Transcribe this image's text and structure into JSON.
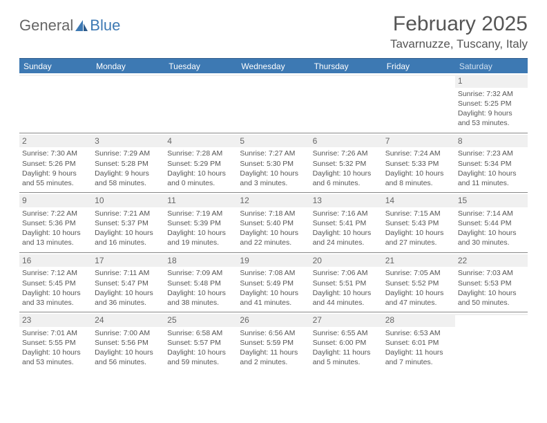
{
  "logo": {
    "text1": "General",
    "text2": "Blue"
  },
  "title": "February 2025",
  "location": "Tavarnuzze, Tuscany, Italy",
  "day_headers": [
    "Sunday",
    "Monday",
    "Tuesday",
    "Wednesday",
    "Thursday",
    "Friday",
    "Saturday"
  ],
  "colors": {
    "header_bg": "#3d79b3",
    "header_text": "#ffffff",
    "border": "#888888",
    "num_bg": "#f0f0f0",
    "body_text": "#555555"
  },
  "weeks": [
    [
      {
        "num": "",
        "sunrise": "",
        "sunset": "",
        "daylight": ""
      },
      {
        "num": "",
        "sunrise": "",
        "sunset": "",
        "daylight": ""
      },
      {
        "num": "",
        "sunrise": "",
        "sunset": "",
        "daylight": ""
      },
      {
        "num": "",
        "sunrise": "",
        "sunset": "",
        "daylight": ""
      },
      {
        "num": "",
        "sunrise": "",
        "sunset": "",
        "daylight": ""
      },
      {
        "num": "",
        "sunrise": "",
        "sunset": "",
        "daylight": ""
      },
      {
        "num": "1",
        "sunrise": "Sunrise: 7:32 AM",
        "sunset": "Sunset: 5:25 PM",
        "daylight": "Daylight: 9 hours and 53 minutes."
      }
    ],
    [
      {
        "num": "2",
        "sunrise": "Sunrise: 7:30 AM",
        "sunset": "Sunset: 5:26 PM",
        "daylight": "Daylight: 9 hours and 55 minutes."
      },
      {
        "num": "3",
        "sunrise": "Sunrise: 7:29 AM",
        "sunset": "Sunset: 5:28 PM",
        "daylight": "Daylight: 9 hours and 58 minutes."
      },
      {
        "num": "4",
        "sunrise": "Sunrise: 7:28 AM",
        "sunset": "Sunset: 5:29 PM",
        "daylight": "Daylight: 10 hours and 0 minutes."
      },
      {
        "num": "5",
        "sunrise": "Sunrise: 7:27 AM",
        "sunset": "Sunset: 5:30 PM",
        "daylight": "Daylight: 10 hours and 3 minutes."
      },
      {
        "num": "6",
        "sunrise": "Sunrise: 7:26 AM",
        "sunset": "Sunset: 5:32 PM",
        "daylight": "Daylight: 10 hours and 6 minutes."
      },
      {
        "num": "7",
        "sunrise": "Sunrise: 7:24 AM",
        "sunset": "Sunset: 5:33 PM",
        "daylight": "Daylight: 10 hours and 8 minutes."
      },
      {
        "num": "8",
        "sunrise": "Sunrise: 7:23 AM",
        "sunset": "Sunset: 5:34 PM",
        "daylight": "Daylight: 10 hours and 11 minutes."
      }
    ],
    [
      {
        "num": "9",
        "sunrise": "Sunrise: 7:22 AM",
        "sunset": "Sunset: 5:36 PM",
        "daylight": "Daylight: 10 hours and 13 minutes."
      },
      {
        "num": "10",
        "sunrise": "Sunrise: 7:21 AM",
        "sunset": "Sunset: 5:37 PM",
        "daylight": "Daylight: 10 hours and 16 minutes."
      },
      {
        "num": "11",
        "sunrise": "Sunrise: 7:19 AM",
        "sunset": "Sunset: 5:39 PM",
        "daylight": "Daylight: 10 hours and 19 minutes."
      },
      {
        "num": "12",
        "sunrise": "Sunrise: 7:18 AM",
        "sunset": "Sunset: 5:40 PM",
        "daylight": "Daylight: 10 hours and 22 minutes."
      },
      {
        "num": "13",
        "sunrise": "Sunrise: 7:16 AM",
        "sunset": "Sunset: 5:41 PM",
        "daylight": "Daylight: 10 hours and 24 minutes."
      },
      {
        "num": "14",
        "sunrise": "Sunrise: 7:15 AM",
        "sunset": "Sunset: 5:43 PM",
        "daylight": "Daylight: 10 hours and 27 minutes."
      },
      {
        "num": "15",
        "sunrise": "Sunrise: 7:14 AM",
        "sunset": "Sunset: 5:44 PM",
        "daylight": "Daylight: 10 hours and 30 minutes."
      }
    ],
    [
      {
        "num": "16",
        "sunrise": "Sunrise: 7:12 AM",
        "sunset": "Sunset: 5:45 PM",
        "daylight": "Daylight: 10 hours and 33 minutes."
      },
      {
        "num": "17",
        "sunrise": "Sunrise: 7:11 AM",
        "sunset": "Sunset: 5:47 PM",
        "daylight": "Daylight: 10 hours and 36 minutes."
      },
      {
        "num": "18",
        "sunrise": "Sunrise: 7:09 AM",
        "sunset": "Sunset: 5:48 PM",
        "daylight": "Daylight: 10 hours and 38 minutes."
      },
      {
        "num": "19",
        "sunrise": "Sunrise: 7:08 AM",
        "sunset": "Sunset: 5:49 PM",
        "daylight": "Daylight: 10 hours and 41 minutes."
      },
      {
        "num": "20",
        "sunrise": "Sunrise: 7:06 AM",
        "sunset": "Sunset: 5:51 PM",
        "daylight": "Daylight: 10 hours and 44 minutes."
      },
      {
        "num": "21",
        "sunrise": "Sunrise: 7:05 AM",
        "sunset": "Sunset: 5:52 PM",
        "daylight": "Daylight: 10 hours and 47 minutes."
      },
      {
        "num": "22",
        "sunrise": "Sunrise: 7:03 AM",
        "sunset": "Sunset: 5:53 PM",
        "daylight": "Daylight: 10 hours and 50 minutes."
      }
    ],
    [
      {
        "num": "23",
        "sunrise": "Sunrise: 7:01 AM",
        "sunset": "Sunset: 5:55 PM",
        "daylight": "Daylight: 10 hours and 53 minutes."
      },
      {
        "num": "24",
        "sunrise": "Sunrise: 7:00 AM",
        "sunset": "Sunset: 5:56 PM",
        "daylight": "Daylight: 10 hours and 56 minutes."
      },
      {
        "num": "25",
        "sunrise": "Sunrise: 6:58 AM",
        "sunset": "Sunset: 5:57 PM",
        "daylight": "Daylight: 10 hours and 59 minutes."
      },
      {
        "num": "26",
        "sunrise": "Sunrise: 6:56 AM",
        "sunset": "Sunset: 5:59 PM",
        "daylight": "Daylight: 11 hours and 2 minutes."
      },
      {
        "num": "27",
        "sunrise": "Sunrise: 6:55 AM",
        "sunset": "Sunset: 6:00 PM",
        "daylight": "Daylight: 11 hours and 5 minutes."
      },
      {
        "num": "28",
        "sunrise": "Sunrise: 6:53 AM",
        "sunset": "Sunset: 6:01 PM",
        "daylight": "Daylight: 11 hours and 7 minutes."
      },
      {
        "num": "",
        "sunrise": "",
        "sunset": "",
        "daylight": ""
      }
    ]
  ]
}
